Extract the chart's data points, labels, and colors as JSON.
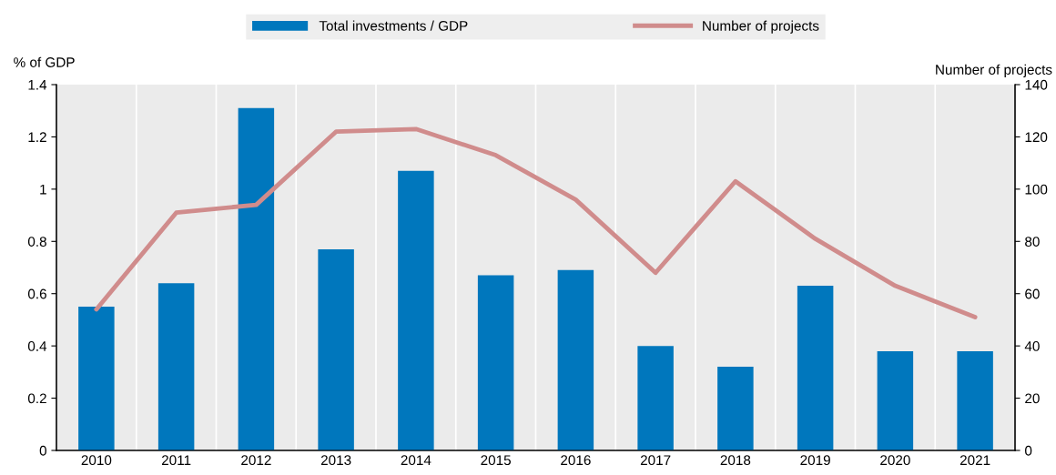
{
  "chart_data": {
    "type": "bar",
    "categories": [
      "2010",
      "2011",
      "2012",
      "2013",
      "2014",
      "2015",
      "2016",
      "2017",
      "2018",
      "2019",
      "2020",
      "2021"
    ],
    "series": [
      {
        "name": "Total investments / GDP",
        "color": "#0077bd",
        "values": [
          0.55,
          0.64,
          1.31,
          0.77,
          1.07,
          0.67,
          0.69,
          0.4,
          0.32,
          0.63,
          0.38,
          0.38
        ]
      },
      {
        "name": "Number of projects",
        "type": "line",
        "axis": "y2",
        "color": "#d08c8c",
        "values": [
          54,
          91,
          94,
          122,
          123,
          113,
          96,
          68,
          103,
          81,
          63,
          51
        ]
      }
    ],
    "ylabel": "% of GDP",
    "y2label": "Number of projects",
    "ylim": [
      0,
      1.4
    ],
    "yticks": [
      0,
      0.2,
      0.4,
      0.6,
      0.8,
      1,
      1.2,
      1.4
    ],
    "y2lim": [
      0,
      140
    ],
    "y2ticks": [
      0,
      20,
      40,
      60,
      80,
      100,
      120,
      140
    ],
    "grid": "x",
    "legend": "top",
    "marker": "none",
    "line_style": "solid"
  }
}
